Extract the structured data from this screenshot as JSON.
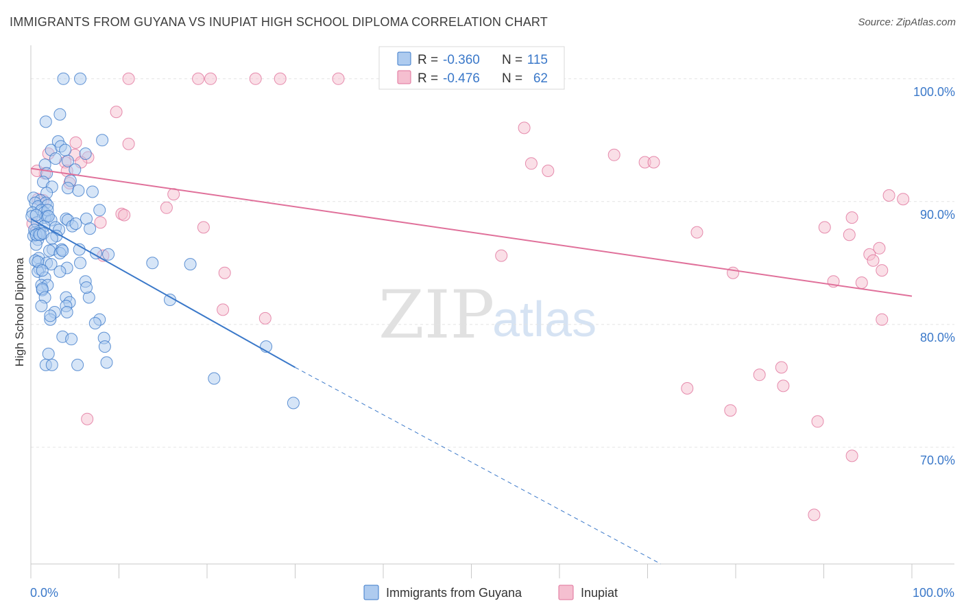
{
  "title": "IMMIGRANTS FROM GUYANA VS INUPIAT HIGH SCHOOL DIPLOMA CORRELATION CHART",
  "source": "Source: ZipAtlas.com",
  "watermark": {
    "part1": "ZIP",
    "part2": "atlas"
  },
  "colors": {
    "blue": "#3a78c9",
    "blue_fill": "#aecbef",
    "pink": "#e0709a",
    "pink_fill": "#f5bfd0"
  },
  "chart_data": {
    "type": "scatter",
    "ylabel": "High School Diploma",
    "xlim": [
      0,
      100
    ],
    "ylim": [
      60.5,
      102.5
    ],
    "x_tick_labels": [
      {
        "value": 0,
        "label": "0.0%"
      },
      {
        "value": 100,
        "label": "100.0%"
      }
    ],
    "y_tick_labels": [
      {
        "value": 100,
        "label": "100.0%"
      },
      {
        "value": 90,
        "label": "90.0%"
      },
      {
        "value": 80,
        "label": "80.0%"
      },
      {
        "value": 70,
        "label": "70.0%"
      }
    ],
    "y_gridlines": [
      100,
      90,
      80,
      70
    ],
    "grid": true,
    "legend_position": "top-center",
    "stats_legend": [
      {
        "r_label": "R =",
        "r_value": "-0.360",
        "n_label": "N =",
        "n_value": "115"
      },
      {
        "r_label": "R =",
        "r_value": "-0.476",
        "n_label": "N =",
        "n_value": "62"
      }
    ],
    "series": [
      {
        "name": "Immigrants from Guyana",
        "color": "#3a78c9",
        "trend": {
          "x0": 0,
          "y0": 88.6,
          "x1": 30,
          "y1": 76.5,
          "dash_to_x": 71.5,
          "dash_to_y": 60.5
        },
        "points": [
          [
            3.7,
            100
          ],
          [
            5.6,
            100
          ],
          [
            8.1,
            95.0
          ],
          [
            1.7,
            96.5
          ],
          [
            3.3,
            97.1
          ],
          [
            2.3,
            94.2
          ],
          [
            3.1,
            94.9
          ],
          [
            3.4,
            94.5
          ],
          [
            3.9,
            94.2
          ],
          [
            6.2,
            93.9
          ],
          [
            1.6,
            93.0
          ],
          [
            2.8,
            93.5
          ],
          [
            4.2,
            93.3
          ],
          [
            5.0,
            92.6
          ],
          [
            1.8,
            92.3
          ],
          [
            1.4,
            91.6
          ],
          [
            4.5,
            91.7
          ],
          [
            2.4,
            91.2
          ],
          [
            4.2,
            91.1
          ],
          [
            5.4,
            90.9
          ],
          [
            7.0,
            90.8
          ],
          [
            1.8,
            90.7
          ],
          [
            0.3,
            90.3
          ],
          [
            1.1,
            90.1
          ],
          [
            1.7,
            89.9
          ],
          [
            0.5,
            89.9
          ],
          [
            0.8,
            89.6
          ],
          [
            1.9,
            89.7
          ],
          [
            0.2,
            89.1
          ],
          [
            1.2,
            89.3
          ],
          [
            1.5,
            89.1
          ],
          [
            7.8,
            89.3
          ],
          [
            1.8,
            88.8
          ],
          [
            1.6,
            88.7
          ],
          [
            0.1,
            88.8
          ],
          [
            4.0,
            88.6
          ],
          [
            2.3,
            88.5
          ],
          [
            4.2,
            88.5
          ],
          [
            6.3,
            88.6
          ],
          [
            4.7,
            88.0
          ],
          [
            5.1,
            88.2
          ],
          [
            6.7,
            87.8
          ],
          [
            0.7,
            88.3
          ],
          [
            1.5,
            88.0
          ],
          [
            2.8,
            87.9
          ],
          [
            0.5,
            87.5
          ],
          [
            1.0,
            87.6
          ],
          [
            3.2,
            87.7
          ],
          [
            0.3,
            87.2
          ],
          [
            1.1,
            87.3
          ],
          [
            2.9,
            87.2
          ],
          [
            0.8,
            86.9
          ],
          [
            0.6,
            86.5
          ],
          [
            2.5,
            86.1
          ],
          [
            3.5,
            86.1
          ],
          [
            2.1,
            86.0
          ],
          [
            3.3,
            85.8
          ],
          [
            5.5,
            86.1
          ],
          [
            7.4,
            85.8
          ],
          [
            8.8,
            85.7
          ],
          [
            0.9,
            85.4
          ],
          [
            0.5,
            85.2
          ],
          [
            1.8,
            85.0
          ],
          [
            2.3,
            84.9
          ],
          [
            5.6,
            85.0
          ],
          [
            4.1,
            84.6
          ],
          [
            1.0,
            84.5
          ],
          [
            0.8,
            84.3
          ],
          [
            3.3,
            84.3
          ],
          [
            13.8,
            85.0
          ],
          [
            18.1,
            84.9
          ],
          [
            1.6,
            83.8
          ],
          [
            6.2,
            83.5
          ],
          [
            1.2,
            83.2
          ],
          [
            1.9,
            83.2
          ],
          [
            1.3,
            82.8
          ],
          [
            1.3,
            82.9
          ],
          [
            1.6,
            82.2
          ],
          [
            4.0,
            82.2
          ],
          [
            4.4,
            81.8
          ],
          [
            6.6,
            82.2
          ],
          [
            15.8,
            82.0
          ],
          [
            1.2,
            81.5
          ],
          [
            4.0,
            81.5
          ],
          [
            2.7,
            81.0
          ],
          [
            4.1,
            81.0
          ],
          [
            2.2,
            80.4
          ],
          [
            7.8,
            80.4
          ],
          [
            7.3,
            80.1
          ],
          [
            3.6,
            79.0
          ],
          [
            4.6,
            78.8
          ],
          [
            8.3,
            78.9
          ],
          [
            8.4,
            78.2
          ],
          [
            26.7,
            78.2
          ],
          [
            2.0,
            77.6
          ],
          [
            8.6,
            76.9
          ],
          [
            1.7,
            76.7
          ],
          [
            2.4,
            76.7
          ],
          [
            5.3,
            76.7
          ],
          [
            20.8,
            75.6
          ],
          [
            29.8,
            73.6
          ],
          [
            0.6,
            88.9
          ],
          [
            1.9,
            89.3
          ],
          [
            2.0,
            88.8
          ],
          [
            0.4,
            87.7
          ],
          [
            0.9,
            87.4
          ],
          [
            0.6,
            87.3
          ],
          [
            1.0,
            87.3
          ],
          [
            1.4,
            87.4
          ],
          [
            2.4,
            87.0
          ],
          [
            3.6,
            86.0
          ],
          [
            0.8,
            85.1
          ],
          [
            1.3,
            84.4
          ],
          [
            6.3,
            83.0
          ],
          [
            2.2,
            80.7
          ]
        ]
      },
      {
        "name": "Inupiat",
        "color": "#e0709a",
        "trend": {
          "x0": 0,
          "y0": 92.7,
          "x1": 100,
          "y1": 82.3
        },
        "points": [
          [
            11.1,
            100
          ],
          [
            19.0,
            100
          ],
          [
            20.4,
            100
          ],
          [
            25.5,
            100
          ],
          [
            28.3,
            100
          ],
          [
            34.9,
            100
          ],
          [
            47.3,
            100
          ],
          [
            9.7,
            97.3
          ],
          [
            56.0,
            96.0
          ],
          [
            11.1,
            94.7
          ],
          [
            5.1,
            94.8
          ],
          [
            2.0,
            93.9
          ],
          [
            5.0,
            93.8
          ],
          [
            6.5,
            93.6
          ],
          [
            3.9,
            93.2
          ],
          [
            5.7,
            93.2
          ],
          [
            56.8,
            93.1
          ],
          [
            66.2,
            93.8
          ],
          [
            69.7,
            93.2
          ],
          [
            70.7,
            93.2
          ],
          [
            1.6,
            92.3
          ],
          [
            4.1,
            92.5
          ],
          [
            0.7,
            92.5
          ],
          [
            58.7,
            92.5
          ],
          [
            4.4,
            91.5
          ],
          [
            16.2,
            90.6
          ],
          [
            1.4,
            90.1
          ],
          [
            15.4,
            89.5
          ],
          [
            10.3,
            89.0
          ],
          [
            10.6,
            88.9
          ],
          [
            7.9,
            88.3
          ],
          [
            19.6,
            87.9
          ],
          [
            75.6,
            87.5
          ],
          [
            90.1,
            87.9
          ],
          [
            93.2,
            88.7
          ],
          [
            0.2,
            88.2
          ],
          [
            92.9,
            87.3
          ],
          [
            97.4,
            90.5
          ],
          [
            99.0,
            90.2
          ],
          [
            53.4,
            85.6
          ],
          [
            95.2,
            85.7
          ],
          [
            96.3,
            86.2
          ],
          [
            8.2,
            85.6
          ],
          [
            96.6,
            84.4
          ],
          [
            22.0,
            84.2
          ],
          [
            79.7,
            84.2
          ],
          [
            91.1,
            83.5
          ],
          [
            94.3,
            83.4
          ],
          [
            21.8,
            81.2
          ],
          [
            26.6,
            80.5
          ],
          [
            96.6,
            80.4
          ],
          [
            82.7,
            75.9
          ],
          [
            85.2,
            76.5
          ],
          [
            85.4,
            75.0
          ],
          [
            74.5,
            74.8
          ],
          [
            79.4,
            73.0
          ],
          [
            89.3,
            72.1
          ],
          [
            6.4,
            72.3
          ],
          [
            93.2,
            69.3
          ],
          [
            88.9,
            64.5
          ],
          [
            95.6,
            85.2
          ],
          [
            0.8,
            90.2
          ]
        ]
      }
    ]
  }
}
